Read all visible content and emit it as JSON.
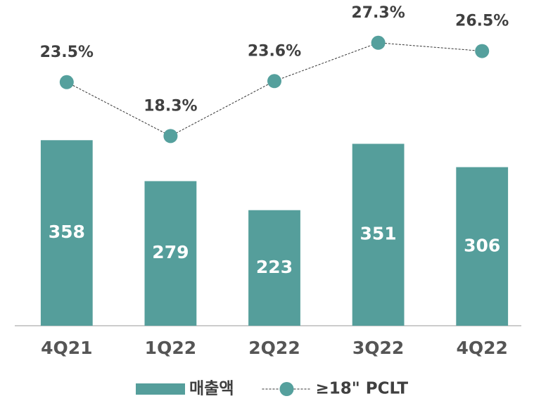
{
  "chart_data": {
    "type": "bar_line",
    "categories": [
      "4Q21",
      "1Q22",
      "2Q22",
      "3Q22",
      "4Q22"
    ],
    "series": [
      {
        "name": "매출액",
        "type": "bar",
        "color": "#559e9b",
        "values": [
          358,
          279,
          223,
          351,
          306
        ]
      },
      {
        "name": "≥18\" PCLT",
        "type": "line",
        "axis": "y2",
        "color": "#55a09d",
        "values": [
          23.5,
          18.3,
          23.6,
          27.3,
          26.5
        ],
        "value_labels": [
          "23.5%",
          "18.3%",
          "23.6%",
          "27.3%",
          "26.5%"
        ]
      }
    ],
    "ylim": [
      0,
      600
    ],
    "y2lim": [
      0,
      30
    ],
    "legend": "bottom"
  }
}
